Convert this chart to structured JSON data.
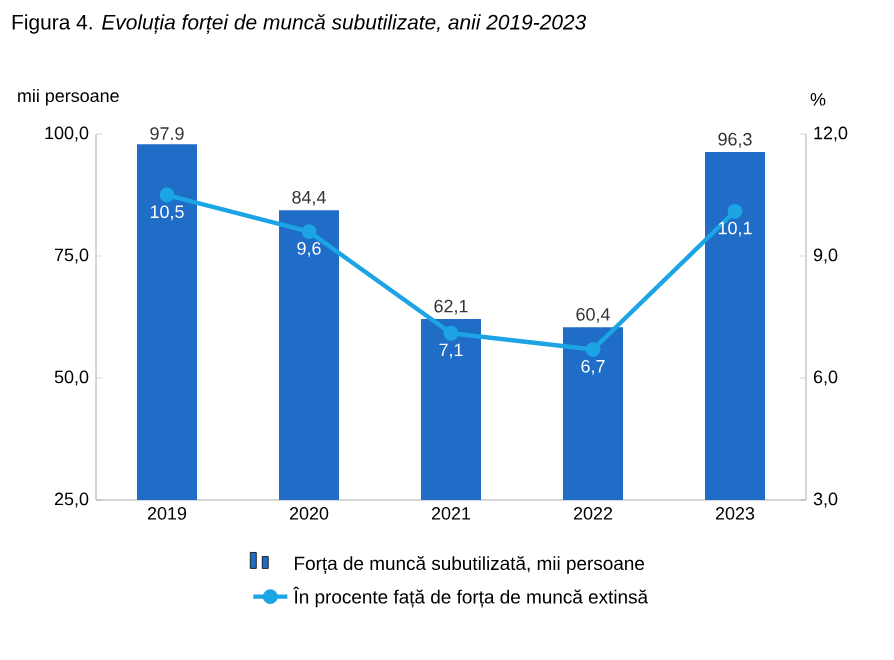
{
  "chart_data": {
    "type": "bar",
    "title": "Figura 4. *Evoluția forței de muncă subutilizate, anii 2019-2023*",
    "ylabel": "mii persoane",
    "y2label": "%",
    "categories": [
      "2019",
      "2020",
      "2021",
      "2022",
      "2023"
    ],
    "series": [
      {
        "name": "Forța de muncă subutilizată, mii persoane",
        "color": "#1f6dc6",
        "values": [
          97.9,
          84.4,
          62.1,
          60.4,
          96.3
        ],
        "value_labels": [
          "97.9",
          "84,4",
          "62,1",
          "60,4",
          "96,3"
        ]
      },
      {
        "name": "În procente față de forța de muncă extinsă",
        "type": "line",
        "axis": "y2",
        "color": "#1ca4e4",
        "values": [
          10.5,
          9.6,
          7.1,
          6.7,
          10.1
        ],
        "value_labels": [
          "10,5",
          "9,6",
          "7,1",
          "6,7",
          "10,1"
        ]
      }
    ],
    "ylim": [
      25,
      100
    ],
    "yticks": [
      {
        "value": 25,
        "label": "25,0"
      },
      {
        "value": 50,
        "label": "50,0"
      },
      {
        "value": 75,
        "label": "75,0"
      },
      {
        "value": 100,
        "label": "100,0"
      }
    ],
    "y2lim": [
      3,
      12
    ],
    "y2ticks": [
      {
        "value": 3,
        "label": "3,0"
      },
      {
        "value": 6,
        "label": "6,0"
      },
      {
        "value": 9,
        "label": "9,0"
      },
      {
        "value": 12,
        "label": "12,0"
      }
    ],
    "marker": "circle",
    "legend": "bottom",
    "grid": false
  }
}
